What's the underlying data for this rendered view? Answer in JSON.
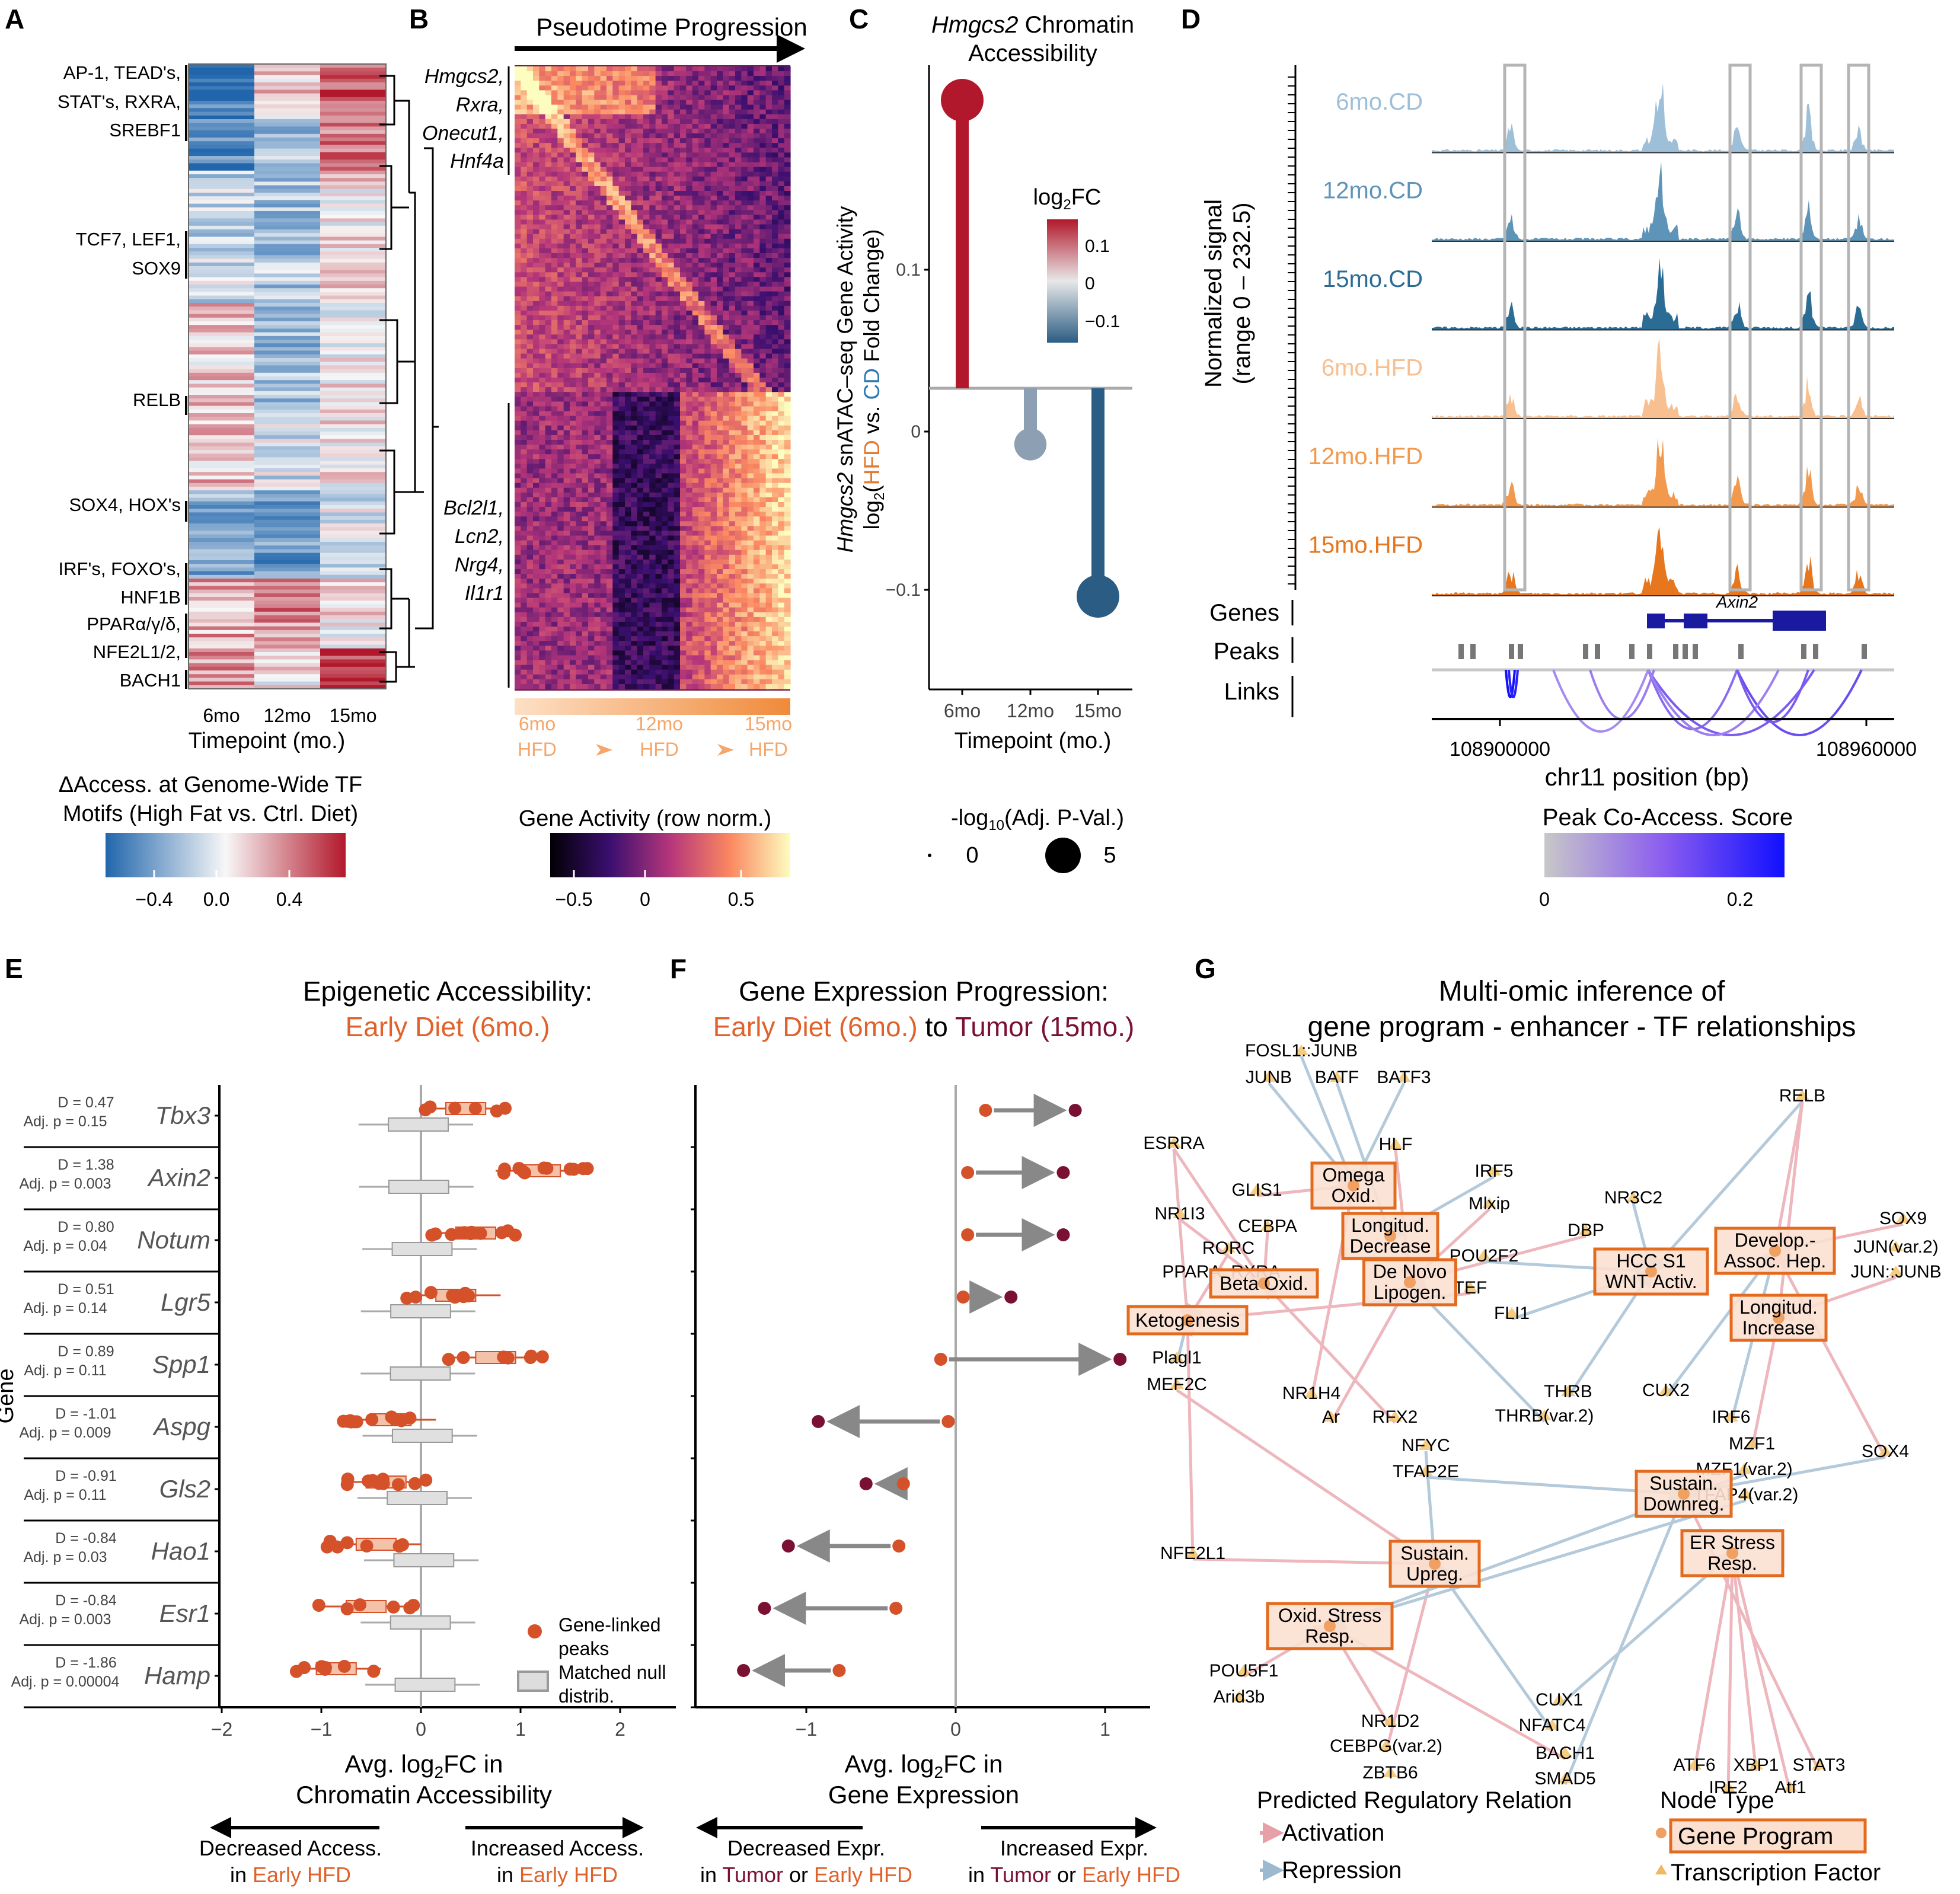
{
  "panel_letters": [
    "A",
    "B",
    "C",
    "D",
    "E",
    "F",
    "G"
  ],
  "colors": {
    "blue": "#2b5d84",
    "red": "#b2182b",
    "orange": "#e27b2e",
    "darkred": "#7a1133",
    "gray": "#999999",
    "purple": "#7b5cf0"
  },
  "chart_data": [
    {
      "panel": "A",
      "type": "heatmap",
      "xlabel": "Timepoint (mo.)",
      "categories": [
        "6mo",
        "12mo",
        "15mo"
      ],
      "row_labels": [
        "AP-1, TEAD's,",
        "STAT's, RXRA,",
        "SREBF1",
        "TCF7, LEF1,",
        "SOX9",
        "RELB",
        "SOX4, HOX's",
        "IRF's, FOXO's,",
        "HNF1B",
        "PPARα/γ/δ,",
        "NFE2L1/2,",
        "BACH1"
      ],
      "colorbar_title": [
        "ΔAccess. at Genome-Wide TF",
        "Motifs (High Fat vs. Ctrl. Diet)"
      ],
      "colorbar_ticks": [
        "−0.4",
        "0.0",
        "0.4"
      ],
      "colorscale": [
        "#2166ac",
        "#f7f7f7",
        "#b2182b"
      ]
    },
    {
      "panel": "B",
      "type": "heatmap",
      "title": "Pseudotime Progression",
      "gene_labels_top": [
        "Hmgcs2,",
        "Rxra,",
        "Onecut1,",
        "Hnf4a"
      ],
      "gene_labels_bottom": [
        "Bcl2l1,",
        "Lcn2,",
        "Nrg4,",
        "Il1r1"
      ],
      "x_annot": [
        {
          "line1": "6mo",
          "line2": "HFD"
        },
        {
          "line1": "12mo",
          "line2": "HFD"
        },
        {
          "line1": "15mo",
          "line2": "HFD"
        }
      ],
      "colorbar_title": "Gene Activity (row norm.)",
      "colorbar_ticks": [
        "−0.5",
        "0",
        "0.5"
      ]
    },
    {
      "panel": "C",
      "type": "lollipop",
      "title_italic": "Hmgcs2",
      "title_rest": " Chromatin",
      "title_line2": "Accessibility",
      "categories": [
        "6mo",
        "12mo",
        "15mo"
      ],
      "values": [
        0.18,
        -0.035,
        -0.13
      ],
      "point_size_values": [
        5,
        3,
        5
      ],
      "point_colors": [
        "#b2182b",
        "#8da0b3",
        "#2b5d84"
      ],
      "ylim": [
        -0.16,
        0.22
      ],
      "yticks": [
        "0.1",
        "0",
        "−0.1"
      ],
      "xlabel": "Timepoint (mo.)",
      "ylabel_italic": "Hmgcs2",
      "ylabel_rest": " snATAC–seq Gene Activity",
      "ylabel_line2": "log2(HFD vs. CD Fold Change)",
      "legend_color_title": "log2FC",
      "legend_color_ticks": [
        "0.1",
        "0",
        "−0.1"
      ],
      "legend_size_title": "-log10(Adj. P-Val.)",
      "legend_size_ticks": [
        "0",
        "5"
      ]
    },
    {
      "panel": "D",
      "type": "area",
      "tracks": [
        "6mo.CD",
        "12mo.CD",
        "15mo.CD",
        "6mo.HFD",
        "12mo.HFD",
        "15mo.HFD"
      ],
      "track_colors": [
        "#9ebfd8",
        "#5e94b8",
        "#2b6c94",
        "#f8c090",
        "#f2994e",
        "#e6771e"
      ],
      "ylabel": [
        "Normalized signal",
        "(range 0 – 232.5)"
      ],
      "row_labels": [
        "Genes",
        "Peaks",
        "Links"
      ],
      "gene": "Axin2",
      "xlabel": "chr11 position (bp)",
      "xticks": [
        "108900000",
        "108960000"
      ],
      "colorbar_title": "Peak Co-Access. Score",
      "colorbar_ticks": [
        "0",
        "0.2"
      ]
    },
    {
      "panel": "E",
      "type": "scatter",
      "title_line1": "Epigenetic Accessibility:",
      "title_line2": "Early Diet (6mo.)",
      "ylabel": "Gene",
      "genes": [
        "Tbx3",
        "Axin2",
        "Notum",
        "Lgr5",
        "Spp1",
        "Aspg",
        "Gls2",
        "Hao1",
        "Esr1",
        "Hamp"
      ],
      "D": [
        "D = 0.47",
        "D = 1.38",
        "D = 0.80",
        "D = 0.51",
        "D = 0.89",
        "D = -1.01",
        "D = -0.91",
        "D = -0.84",
        "D = -0.84",
        "D = -1.86"
      ],
      "adjp": [
        "Adj. p = 0.15",
        "Adj. p = 0.003",
        "Adj. p = 0.04",
        "Adj. p = 0.14",
        "Adj. p = 0.11",
        "Adj. p = 0.009",
        "Adj. p = 0.11",
        "Adj. p = 0.03",
        "Adj. p = 0.003",
        "Adj. p = 0.00004"
      ],
      "medians": [
        0.45,
        1.2,
        0.55,
        0.35,
        0.75,
        -0.3,
        -0.35,
        -0.45,
        -0.55,
        -0.85
      ],
      "xlim": [
        -2,
        2.5
      ],
      "xticks": [
        "−2",
        "−1",
        "0",
        "1",
        "2"
      ],
      "xlabel": [
        "Avg. log2FC in",
        "Chromatin Accessibility"
      ],
      "legend": [
        "Gene-linked",
        "peaks",
        "Matched null",
        "distrib."
      ],
      "arrow_left": [
        "Decreased Access.",
        "in ",
        "Early HFD"
      ],
      "arrow_right": [
        "Increased Access.",
        "in ",
        "Early HFD"
      ]
    },
    {
      "panel": "F",
      "type": "scatter",
      "title_line1": "Gene Expression Progression:",
      "title_early": "Early Diet (6mo.)",
      "title_to": " to ",
      "title_tumor": "Tumor (15mo.)",
      "start": [
        0.2,
        0.08,
        0.08,
        0.05,
        -0.1,
        -0.05,
        -0.35,
        -0.38,
        -0.4,
        -0.78
      ],
      "end": [
        0.8,
        0.72,
        0.72,
        0.37,
        1.1,
        -0.92,
        -0.6,
        -1.12,
        -1.28,
        -1.42
      ],
      "xlim": [
        -1.75,
        1.4
      ],
      "xticks": [
        "−1",
        "0",
        "1"
      ],
      "xlabel": [
        "Avg. log2FC in",
        "Gene Expression"
      ],
      "arrow_left": [
        "Decreased Expr.",
        "in ",
        "Tumor",
        " or ",
        "Early HFD"
      ],
      "arrow_right": [
        "Increased Expr.",
        "in ",
        "Tumor",
        " or ",
        "Early HFD"
      ]
    },
    {
      "panel": "G",
      "type": "network",
      "title": [
        "Multi-omic inference of",
        "gene program - enhancer - TF relationships"
      ],
      "programs": [
        {
          "id": "omega",
          "label": [
            "Omega",
            "Oxid."
          ]
        },
        {
          "id": "longdec",
          "label": [
            "Longitud.",
            "Decrease"
          ]
        },
        {
          "id": "denovo",
          "label": [
            "De Novo",
            "Lipogen."
          ]
        },
        {
          "id": "beta",
          "label": [
            "Beta Oxid."
          ]
        },
        {
          "id": "keto",
          "label": [
            "Ketogenesis"
          ]
        },
        {
          "id": "hcc",
          "label": [
            "HCC S1",
            "WNT Activ."
          ]
        },
        {
          "id": "develop",
          "label": [
            "Develop.-",
            "Assoc. Hep."
          ]
        },
        {
          "id": "longinc",
          "label": [
            "Longitud.",
            "Increase"
          ]
        },
        {
          "id": "sdown",
          "label": [
            "Sustain.",
            "Downreg."
          ]
        },
        {
          "id": "ers",
          "label": [
            "ER Stress",
            "Resp."
          ]
        },
        {
          "id": "sup",
          "label": [
            "Sustain.",
            "Upreg."
          ]
        },
        {
          "id": "oxs",
          "label": [
            "Oxid. Stress",
            "Resp."
          ]
        }
      ],
      "tfs": [
        "FOSL1::JUNB",
        "JUNB",
        "BATF",
        "BATF3",
        "RELB",
        "ESRRA",
        "HLF",
        "IRF5",
        "GLIS1",
        "Mlxip",
        "NR3C2",
        "NR1I3",
        "CEBPA",
        "DBP",
        "SOX9",
        "RORC",
        "POU2F2",
        "JUN(var.2)",
        "PPARA::RXRA",
        "TEF",
        "JUN::JUNB",
        "FLI1",
        "Plagl1",
        "MEF2C",
        "NR1H4",
        "Ar",
        "RFX2",
        "THRB",
        "THRB(var.2)",
        "CUX2",
        "IRF6",
        "MZF1",
        "MZF1(var.2)",
        "TFAP4(var.2)",
        "NFYC",
        "TFAP2E",
        "SOX4",
        "NFE2L1",
        "CUX1",
        "NFATC4",
        "POU5F1",
        "Arid3b",
        "NR1D2",
        "CEBPG(var.2)",
        "BACH1",
        "SMAD5",
        "ZBTB6",
        "ATF6",
        "XBP1",
        "STAT3",
        "IRF2",
        "Atf1"
      ],
      "legend_relation_title": "Predicted Regulatory Relation",
      "legend_relations": [
        "Activation",
        "Repression"
      ],
      "legend_node_title": "Node Type",
      "legend_nodes": [
        "Gene Program",
        "Transcription Factor"
      ]
    }
  ]
}
